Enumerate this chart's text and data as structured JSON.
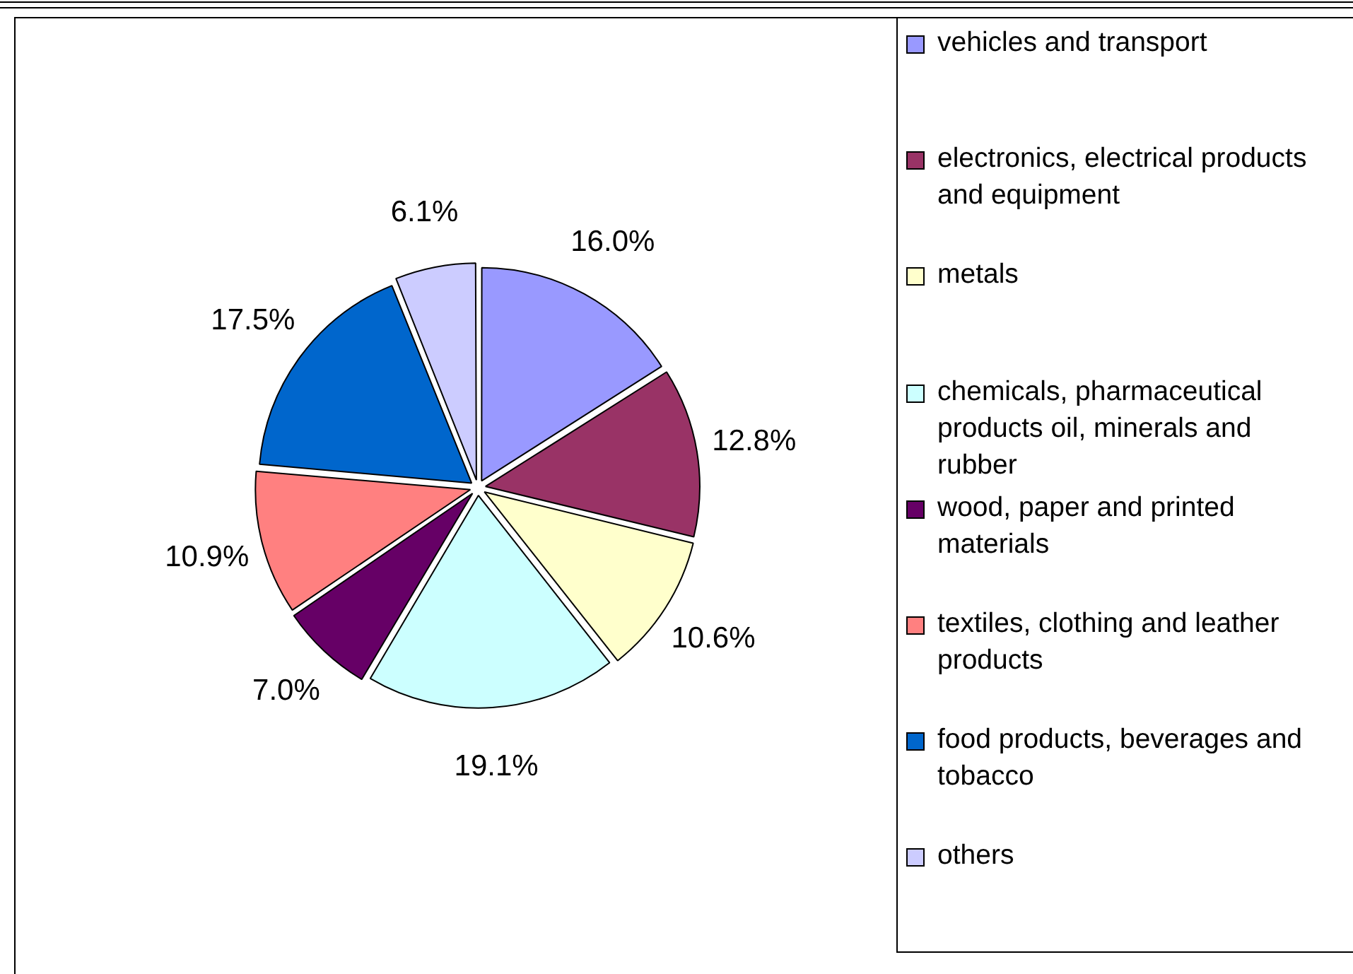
{
  "chart_data": {
    "type": "pie",
    "categories": [
      "vehicles and transport",
      "electronics, electrical products and equipment",
      "metals",
      "chemicals, pharmaceutical products oil, minerals and rubber",
      "wood, paper and printed materials",
      "textiles, clothing and leather products",
      "food products, beverages and tobacco",
      "others"
    ],
    "values": [
      16.0,
      12.8,
      10.6,
      19.1,
      7.0,
      10.9,
      17.5,
      6.1
    ],
    "value_labels": [
      "16.0%",
      "12.8%",
      "10.6%",
      "19.1%",
      "7.0%",
      "10.9%",
      "17.5%",
      "6.1%"
    ],
    "colors": [
      "#9999ff",
      "#993366",
      "#ffffcc",
      "#ccffff",
      "#660066",
      "#ff8080",
      "#0066cc",
      "#ccccff"
    ],
    "legend": "right"
  }
}
